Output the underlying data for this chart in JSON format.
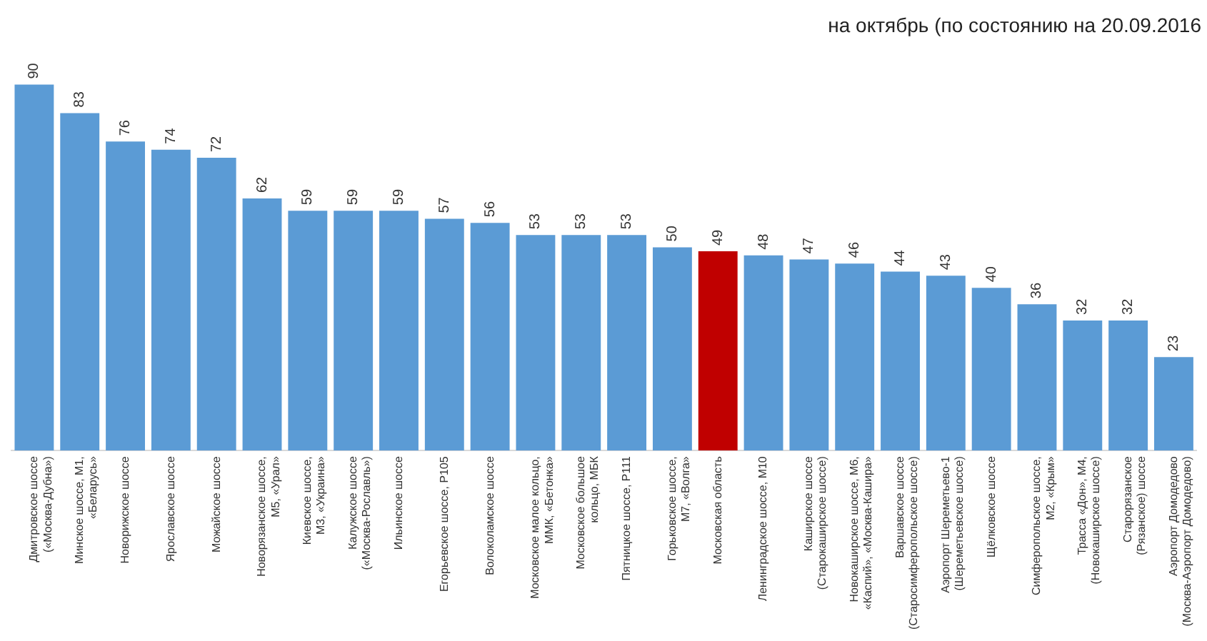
{
  "chart_data": {
    "type": "bar",
    "title": "на октябрь (по состоянию на 20.09.2016",
    "categories": [
      "Дмитровское шоссе\n(«Москва-Дубна»)",
      "Минское шоссе, М1,\n«Беларусь»",
      "Новорижское шоссе",
      "Ярославское шоссе",
      "Можайское шоссе",
      "Новорязанское шоссе,\nМ5, «Урал»",
      "Киевское шоссе,\nМ3, «Украина»",
      "Калужское шоссе\n(«Москва-Рославль»)",
      "Ильинское шоссе",
      "Егорьевское шоссе, Р105",
      "Волоколамское шоссе",
      "Московское малое кольцо,\nММК, «Бетонка»",
      "Московское большое\nкольцо, МБК",
      "Пятницкое шоссе, Р111",
      "Горьковское шоссе,\nМ7, «Волга»",
      "Московская область",
      "Ленинградское шоссе, М10",
      "Каширское шоссе\n(Старокаширское шоссе)",
      "Новокаширское шоссе, М6,\n«Каспий», «Москва-Кашира»",
      "Варшавское шоссе\n(Старосимферопольское шоссе)",
      "Аэропорт Шереметьево-1\n(Шереметьевское шоссе)",
      "Щёлковское шоссе",
      "Симферопольское шоссе,\nМ2, «Крым»",
      "Трасса «Дон», М4,\n(Новокаширское шоссе)",
      "Старорязанское\n(Рязанское) шоссе",
      "Аэропорт Домодедово\n(Москва-Аэропорт Домодедово)"
    ],
    "values": [
      90,
      83,
      76,
      74,
      72,
      62,
      59,
      59,
      59,
      57,
      56,
      53,
      53,
      53,
      50,
      49,
      48,
      47,
      46,
      44,
      43,
      40,
      36,
      32,
      32,
      23
    ],
    "colors": [
      "#5b9bd5",
      "#5b9bd5",
      "#5b9bd5",
      "#5b9bd5",
      "#5b9bd5",
      "#5b9bd5",
      "#5b9bd5",
      "#5b9bd5",
      "#5b9bd5",
      "#5b9bd5",
      "#5b9bd5",
      "#5b9bd5",
      "#5b9bd5",
      "#5b9bd5",
      "#5b9bd5",
      "#c00000",
      "#5b9bd5",
      "#5b9bd5",
      "#5b9bd5",
      "#5b9bd5",
      "#5b9bd5",
      "#5b9bd5",
      "#5b9bd5",
      "#5b9bd5",
      "#5b9bd5",
      "#5b9bd5"
    ],
    "data_labels": true,
    "grid": false,
    "legend": false
  }
}
